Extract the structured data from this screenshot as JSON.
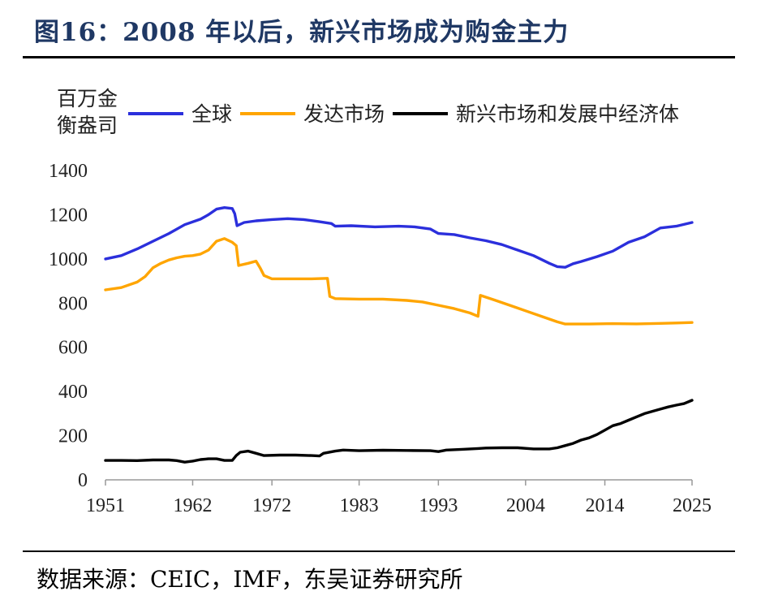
{
  "header": {
    "title": "图16：2008 年以后，新兴市场成为购金主力"
  },
  "footer": {
    "source": "数据来源：CEIC，IMF，东吴证券研究所"
  },
  "chart_data": {
    "type": "line",
    "title": "2008 年以后，新兴市场成为购金主力",
    "ylabel_line1": "百万金",
    "ylabel_line2": "衡盎司",
    "xlabel": "",
    "ylim": [
      0,
      1400
    ],
    "xlim": [
      1951,
      2025
    ],
    "yticks": [
      0,
      200,
      400,
      600,
      800,
      1000,
      1200,
      1400
    ],
    "xticks": [
      1951,
      1962,
      1972,
      1983,
      1993,
      2004,
      2014,
      2025
    ],
    "legend_position": "top",
    "series": [
      {
        "name": "全球",
        "color": "#2b2fdc",
        "points": [
          [
            1951,
            1000
          ],
          [
            1953,
            1015
          ],
          [
            1955,
            1045
          ],
          [
            1957,
            1080
          ],
          [
            1959,
            1115
          ],
          [
            1961,
            1155
          ],
          [
            1963,
            1180
          ],
          [
            1964,
            1200
          ],
          [
            1965,
            1225
          ],
          [
            1966,
            1232
          ],
          [
            1967,
            1228
          ],
          [
            1967.3,
            1205
          ],
          [
            1967.6,
            1150
          ],
          [
            1968.5,
            1165
          ],
          [
            1970,
            1172
          ],
          [
            1972,
            1178
          ],
          [
            1974,
            1182
          ],
          [
            1976,
            1178
          ],
          [
            1978,
            1168
          ],
          [
            1979.5,
            1160
          ],
          [
            1980,
            1148
          ],
          [
            1982,
            1150
          ],
          [
            1985,
            1145
          ],
          [
            1988,
            1148
          ],
          [
            1990,
            1145
          ],
          [
            1992,
            1135
          ],
          [
            1993,
            1115
          ],
          [
            1995,
            1110
          ],
          [
            1997,
            1095
          ],
          [
            1999,
            1082
          ],
          [
            2001,
            1065
          ],
          [
            2003,
            1040
          ],
          [
            2005,
            1015
          ],
          [
            2007,
            980
          ],
          [
            2008,
            965
          ],
          [
            2009,
            962
          ],
          [
            2010,
            978
          ],
          [
            2011,
            988
          ],
          [
            2013,
            1010
          ],
          [
            2015,
            1035
          ],
          [
            2017,
            1075
          ],
          [
            2019,
            1100
          ],
          [
            2021,
            1140
          ],
          [
            2023,
            1148
          ],
          [
            2025,
            1165
          ]
        ]
      },
      {
        "name": "发达市场",
        "color": "#ffa500",
        "points": [
          [
            1951,
            860
          ],
          [
            1953,
            870
          ],
          [
            1955,
            895
          ],
          [
            1956,
            920
          ],
          [
            1957,
            960
          ],
          [
            1958,
            980
          ],
          [
            1959,
            995
          ],
          [
            1960,
            1005
          ],
          [
            1961,
            1012
          ],
          [
            1962,
            1015
          ],
          [
            1963,
            1022
          ],
          [
            1964,
            1040
          ],
          [
            1965,
            1080
          ],
          [
            1966,
            1092
          ],
          [
            1967,
            1075
          ],
          [
            1967.5,
            1060
          ],
          [
            1967.8,
            970
          ],
          [
            1969,
            980
          ],
          [
            1970,
            990
          ],
          [
            1970.5,
            960
          ],
          [
            1971,
            925
          ],
          [
            1972,
            910
          ],
          [
            1975,
            910
          ],
          [
            1977,
            910
          ],
          [
            1979,
            912
          ],
          [
            1979.3,
            830
          ],
          [
            1980,
            820
          ],
          [
            1983,
            818
          ],
          [
            1986,
            818
          ],
          [
            1989,
            812
          ],
          [
            1991,
            805
          ],
          [
            1993,
            790
          ],
          [
            1995,
            775
          ],
          [
            1997,
            755
          ],
          [
            1998,
            740
          ],
          [
            1998.3,
            835
          ],
          [
            2000,
            815
          ],
          [
            2002,
            790
          ],
          [
            2004,
            765
          ],
          [
            2006,
            740
          ],
          [
            2008,
            715
          ],
          [
            2009,
            705
          ],
          [
            2012,
            705
          ],
          [
            2015,
            707
          ],
          [
            2018,
            706
          ],
          [
            2021,
            708
          ],
          [
            2023,
            710
          ],
          [
            2025,
            712
          ]
        ]
      },
      {
        "name": "新兴市场和发展中经济体",
        "color": "#000000",
        "points": [
          [
            1951,
            88
          ],
          [
            1953,
            88
          ],
          [
            1955,
            87
          ],
          [
            1957,
            90
          ],
          [
            1959,
            90
          ],
          [
            1960,
            87
          ],
          [
            1961,
            80
          ],
          [
            1962,
            85
          ],
          [
            1963,
            92
          ],
          [
            1964,
            95
          ],
          [
            1965,
            95
          ],
          [
            1966,
            88
          ],
          [
            1967,
            88
          ],
          [
            1967.5,
            110
          ],
          [
            1968,
            125
          ],
          [
            1969,
            130
          ],
          [
            1970,
            120
          ],
          [
            1971,
            110
          ],
          [
            1973,
            112
          ],
          [
            1975,
            112
          ],
          [
            1977,
            110
          ],
          [
            1978,
            108
          ],
          [
            1978.5,
            120
          ],
          [
            1980,
            130
          ],
          [
            1981,
            135
          ],
          [
            1983,
            132
          ],
          [
            1986,
            134
          ],
          [
            1989,
            133
          ],
          [
            1992,
            132
          ],
          [
            1993,
            128
          ],
          [
            1994,
            135
          ],
          [
            1996,
            138
          ],
          [
            1998,
            142
          ],
          [
            1999,
            144
          ],
          [
            2001,
            145
          ],
          [
            2003,
            145
          ],
          [
            2005,
            140
          ],
          [
            2007,
            140
          ],
          [
            2008,
            145
          ],
          [
            2009,
            155
          ],
          [
            2010,
            165
          ],
          [
            2011,
            180
          ],
          [
            2012,
            190
          ],
          [
            2013,
            205
          ],
          [
            2014,
            225
          ],
          [
            2015,
            245
          ],
          [
            2016,
            255
          ],
          [
            2017,
            270
          ],
          [
            2018,
            285
          ],
          [
            2019,
            300
          ],
          [
            2020,
            310
          ],
          [
            2021,
            320
          ],
          [
            2022,
            330
          ],
          [
            2023,
            338
          ],
          [
            2024,
            345
          ],
          [
            2025,
            360
          ]
        ]
      }
    ]
  }
}
